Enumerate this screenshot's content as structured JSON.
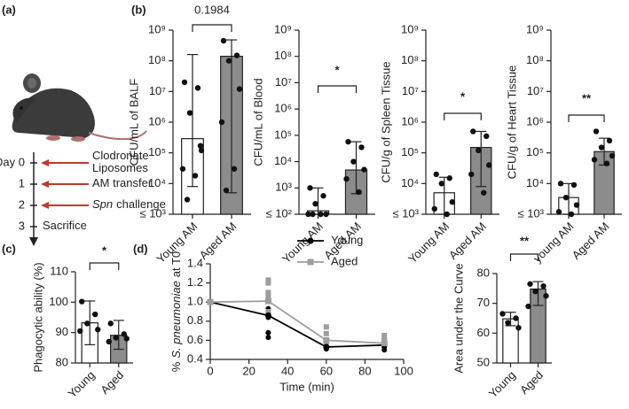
{
  "panel_labels": [
    "(a)",
    "(b)",
    "(c)",
    "(d)"
  ],
  "timeline": {
    "days": [
      "Day 0",
      "1",
      "2",
      "3"
    ],
    "events": [
      {
        "lines": [
          "Clodronate",
          "Liposomes"
        ]
      },
      {
        "lines": [
          "AM transfer"
        ]
      },
      {
        "species": "Spn",
        "lines": [
          "challenge"
        ]
      },
      {
        "lines": [
          "Sacrifice"
        ]
      }
    ]
  },
  "chart_data": [
    {
      "type": "bar",
      "ylabel": "CFU/mL of BALF",
      "categories": [
        "Young AM",
        "Aged AM"
      ],
      "colors": [
        "#ffffff",
        "#8c8c8c"
      ],
      "values": [
        290000,
        140000000
      ],
      "error_bars": [
        [
          8000,
          160000000
        ],
        [
          5000,
          480000000
        ]
      ],
      "points": [
        [
          20000000,
          13000000,
          2000000,
          170000,
          30000,
          18000,
          3000,
          120000
        ],
        [
          450000000,
          150000000,
          100000000,
          12000000,
          1000000,
          30000,
          6000
        ]
      ],
      "log_scale": true,
      "ylim": [
        1000,
        1000000000
      ],
      "yticks": [
        {
          "value": 1000,
          "label": "≤ 10³"
        },
        {
          "value": 10000,
          "label": "10⁴"
        },
        {
          "value": 100000,
          "label": "10⁵"
        },
        {
          "value": 1000000,
          "label": "10⁶"
        },
        {
          "value": 10000000,
          "label": "10⁷"
        },
        {
          "value": 100000000,
          "label": "10⁸"
        },
        {
          "value": 1000000000,
          "label": "10⁹"
        }
      ],
      "annotation": "0.1984"
    },
    {
      "type": "bar",
      "ylabel": "CFU/mL of Blood",
      "categories": [
        "Young AM",
        "Aged AM"
      ],
      "colors": [
        "#ffffff",
        "#8c8c8c"
      ],
      "values": [
        135,
        4800
      ],
      "error_bars": [
        [
          100,
          1000
        ],
        [
          600,
          57000
        ]
      ],
      "points": [
        [
          1000,
          500,
          250,
          100,
          100,
          100,
          100
        ],
        [
          57000,
          35000,
          10000,
          5000,
          2200,
          700
        ]
      ],
      "log_scale": true,
      "ylim": [
        100,
        1000000000
      ],
      "yticks": [
        {
          "value": 100,
          "label": "≤ 10²"
        },
        {
          "value": 1000,
          "label": "10³"
        },
        {
          "value": 10000,
          "label": "10⁴"
        },
        {
          "value": 100000,
          "label": "10⁵"
        },
        {
          "value": 1000000,
          "label": "10⁶"
        },
        {
          "value": 10000000,
          "label": "10⁷"
        },
        {
          "value": 100000000,
          "label": "10⁸"
        },
        {
          "value": 1000000000,
          "label": "10⁹"
        }
      ],
      "annotation": "*"
    },
    {
      "type": "bar",
      "ylabel": "CFU/g of Spleen Tissue",
      "categories": [
        "Young AM",
        "Aged AM"
      ],
      "colors": [
        "#ffffff",
        "#8c8c8c"
      ],
      "values": [
        5000,
        150000
      ],
      "error_bars": [
        [
          1000,
          16000
        ],
        [
          8000,
          500000
        ]
      ],
      "points": [
        [
          20000,
          15000,
          10000,
          2500,
          1500,
          1000
        ],
        [
          500000,
          350000,
          120000,
          40000,
          20000,
          5000
        ]
      ],
      "log_scale": true,
      "ylim": [
        1000,
        1000000000
      ],
      "yticks": [
        {
          "value": 1000,
          "label": "≤ 10³"
        },
        {
          "value": 10000,
          "label": "10⁴"
        },
        {
          "value": 100000,
          "label": "10⁵"
        },
        {
          "value": 1000000,
          "label": "10⁶"
        },
        {
          "value": 10000000,
          "label": "10⁷"
        },
        {
          "value": 100000000,
          "label": "10⁸"
        },
        {
          "value": 1000000000,
          "label": "10⁹"
        }
      ],
      "annotation": "*"
    },
    {
      "type": "bar",
      "ylabel": "CFU/g of Heart Tissue",
      "categories": [
        "young AM",
        "Aged AM"
      ],
      "colors": [
        "#ffffff",
        "#8c8c8c"
      ],
      "values": [
        3500,
        110000
      ],
      "error_bars": [
        [
          1000,
          10000
        ],
        [
          40000,
          300000
        ]
      ],
      "points": [
        [
          10000,
          9000,
          3500,
          2000,
          1200,
          1000
        ],
        [
          500000,
          250000,
          150000,
          80000,
          60000,
          45000
        ]
      ],
      "log_scale": true,
      "ylim": [
        1000,
        1000000000
      ],
      "yticks": [
        {
          "value": 1000,
          "label": "≤ 10³"
        },
        {
          "value": 10000,
          "label": "10⁴"
        },
        {
          "value": 100000,
          "label": "10⁵"
        },
        {
          "value": 1000000,
          "label": "10⁶"
        },
        {
          "value": 10000000,
          "label": "10⁷"
        },
        {
          "value": 100000000,
          "label": "10⁸"
        },
        {
          "value": 1000000000,
          "label": "10⁹"
        }
      ],
      "annotation": "**"
    },
    {
      "type": "bar",
      "ylabel": "Phagocytic ability (%)",
      "categories": [
        "Young",
        "Aged"
      ],
      "colors": [
        "#ffffff",
        "#8c8c8c"
      ],
      "values": [
        93.2,
        89.1
      ],
      "error_bars": [
        [
          86,
          100.4
        ],
        [
          84.5,
          94
        ]
      ],
      "points": [
        [
          100.2,
          96,
          93,
          91,
          90.5
        ],
        [
          93,
          89.5,
          88.3,
          88,
          87
        ]
      ],
      "log_scale": false,
      "ylim": [
        80,
        110
      ],
      "yticks": [
        80,
        90,
        100,
        110
      ],
      "annotation": "*"
    },
    {
      "type": "line",
      "ylabel": [
        "%",
        "S. pneumoniae",
        "at T0"
      ],
      "xlabel": "Time (min)",
      "x": [
        0,
        30,
        60,
        90
      ],
      "series": [
        {
          "name": "Young",
          "color": "#000000",
          "values": [
            1.0,
            0.86,
            0.53,
            0.55
          ],
          "points": [
            [
              1.0
            ],
            [
              0.93,
              0.86,
              0.84,
              0.68,
              0.63
            ],
            [
              0.53,
              0.52,
              0.51
            ],
            [
              0.62,
              0.58,
              0.56,
              0.53,
              0.5
            ]
          ]
        },
        {
          "name": "Aged",
          "color": "#9e9e9e",
          "values": [
            1.0,
            1.01,
            0.6,
            0.57
          ],
          "points": [
            [
              1.0
            ],
            [
              1.23,
              1.2,
              1.1,
              1.05,
              0.9,
              0.88
            ],
            [
              0.74,
              0.67,
              0.6,
              0.55
            ],
            [
              0.65,
              0.6,
              0.57
            ]
          ]
        }
      ],
      "xlim": [
        0,
        100
      ],
      "xticks": [
        0,
        20,
        40,
        60,
        80,
        100
      ],
      "ylim": [
        0.4,
        1.4
      ],
      "yticks": [
        0.4,
        0.6,
        0.8,
        {
          "value": 1.0,
          "label": "1.0"
        },
        1.2,
        1.4
      ],
      "legend": "upper right"
    },
    {
      "type": "bar",
      "ylabel": "Area under the Curve",
      "categories": [
        "Young",
        "Aged"
      ],
      "colors": [
        "#ffffff",
        "#8c8c8c"
      ],
      "values": [
        64.8,
        74.8
      ],
      "error_bars": [
        [
          62.5,
          67
        ],
        [
          69.3,
          77.3
        ]
      ],
      "points": [
        [
          66.5,
          65,
          63.5,
          61.8
        ],
        [
          76.5,
          75.8,
          74,
          72.5,
          69
        ]
      ],
      "log_scale": false,
      "ylim": [
        50,
        80
      ],
      "yticks": [
        50,
        60,
        70,
        80
      ],
      "annotation": "**"
    }
  ]
}
